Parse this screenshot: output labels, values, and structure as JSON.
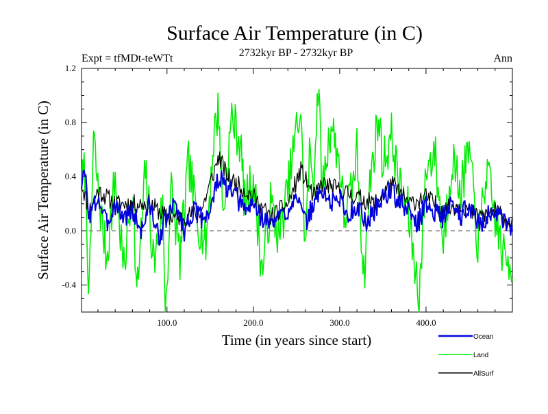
{
  "chart_data": {
    "type": "line",
    "title": "Surface Air Temperature (in C)",
    "subtitle_left": "Expt = tfMDt-teWTt",
    "subtitle_center": "2732kyr BP - 2732kyr BP",
    "subtitle_right": "Ann",
    "xlabel": "Time (in years since start)",
    "ylabel": "Surface Air Temperature (in C)",
    "xlim": [
      1,
      500
    ],
    "ylim": [
      -0.6,
      1.2
    ],
    "xticks": [
      100,
      200,
      300,
      400
    ],
    "xtick_labels": [
      "100.0",
      "200.0",
      "300.0",
      "400.0"
    ],
    "yticks": [
      -0.4,
      0.0,
      0.4,
      0.8,
      1.2
    ],
    "ytick_labels": [
      "-0.4",
      "0.0",
      "0.4",
      "0.8",
      "1.2"
    ],
    "reference_line": 0.0,
    "series_points": 500,
    "series": [
      {
        "name": "Land",
        "color": "#00ee00",
        "anchors": [
          [
            1,
            0.35
          ],
          [
            5,
            0.45
          ],
          [
            10,
            -0.5
          ],
          [
            15,
            0.7
          ],
          [
            20,
            0.3
          ],
          [
            30,
            -0.2
          ],
          [
            40,
            0.4
          ],
          [
            50,
            -0.3
          ],
          [
            60,
            0.35
          ],
          [
            65,
            -0.5
          ],
          [
            75,
            0.45
          ],
          [
            85,
            -0.25
          ],
          [
            95,
            0.2
          ],
          [
            98,
            -0.6
          ],
          [
            105,
            0.3
          ],
          [
            115,
            -0.2
          ],
          [
            125,
            0.5
          ],
          [
            135,
            0.1
          ],
          [
            145,
            -0.1
          ],
          [
            155,
            0.75
          ],
          [
            160,
            0.9
          ],
          [
            165,
            0.1
          ],
          [
            175,
            0.85
          ],
          [
            185,
            0.65
          ],
          [
            190,
            0.2
          ],
          [
            200,
            0.4
          ],
          [
            210,
            -0.3
          ],
          [
            220,
            0.2
          ],
          [
            230,
            -0.05
          ],
          [
            240,
            0.3
          ],
          [
            250,
            0.75
          ],
          [
            255,
            0.9
          ],
          [
            260,
            -0.15
          ],
          [
            265,
            0.55
          ],
          [
            270,
            0.4
          ],
          [
            275,
            1.08
          ],
          [
            280,
            0.3
          ],
          [
            290,
            0.8
          ],
          [
            300,
            0.5
          ],
          [
            305,
            0.1
          ],
          [
            315,
            0.3
          ],
          [
            320,
            0.6
          ],
          [
            328,
            -0.35
          ],
          [
            335,
            0.35
          ],
          [
            345,
            0.85
          ],
          [
            350,
            0.5
          ],
          [
            360,
            0.7
          ],
          [
            370,
            0.3
          ],
          [
            378,
            0.2
          ],
          [
            385,
            -0.15
          ],
          [
            392,
            -0.5
          ],
          [
            400,
            0.45
          ],
          [
            410,
            0.6
          ],
          [
            420,
            -0.1
          ],
          [
            430,
            0.55
          ],
          [
            440,
            0.3
          ],
          [
            450,
            0.6
          ],
          [
            460,
            -0.1
          ],
          [
            470,
            0.45
          ],
          [
            480,
            0.1
          ],
          [
            490,
            -0.2
          ],
          [
            500,
            -0.25
          ]
        ]
      },
      {
        "name": "Ocean",
        "color": "#0000dd",
        "anchors": [
          [
            1,
            0.35
          ],
          [
            5,
            0.42
          ],
          [
            10,
            0.1
          ],
          [
            20,
            0.25
          ],
          [
            30,
            0.05
          ],
          [
            40,
            0.2
          ],
          [
            50,
            0.1
          ],
          [
            60,
            0.15
          ],
          [
            70,
            0.0
          ],
          [
            80,
            0.2
          ],
          [
            90,
            -0.05
          ],
          [
            100,
            0.1
          ],
          [
            110,
            0.2
          ],
          [
            120,
            0.0
          ],
          [
            130,
            0.15
          ],
          [
            140,
            0.1
          ],
          [
            150,
            0.15
          ],
          [
            160,
            0.4
          ],
          [
            170,
            0.3
          ],
          [
            180,
            0.25
          ],
          [
            190,
            0.15
          ],
          [
            200,
            0.2
          ],
          [
            210,
            0.1
          ],
          [
            220,
            0.05
          ],
          [
            230,
            0.1
          ],
          [
            240,
            0.15
          ],
          [
            250,
            0.3
          ],
          [
            255,
            0.15
          ],
          [
            260,
            0.05
          ],
          [
            270,
            0.2
          ],
          [
            280,
            0.3
          ],
          [
            290,
            0.2
          ],
          [
            300,
            0.25
          ],
          [
            310,
            0.1
          ],
          [
            320,
            0.2
          ],
          [
            330,
            0.05
          ],
          [
            340,
            0.15
          ],
          [
            350,
            0.25
          ],
          [
            360,
            0.3
          ],
          [
            370,
            0.2
          ],
          [
            380,
            0.15
          ],
          [
            390,
            0.05
          ],
          [
            400,
            0.2
          ],
          [
            410,
            0.15
          ],
          [
            420,
            0.1
          ],
          [
            430,
            0.2
          ],
          [
            440,
            0.1
          ],
          [
            450,
            0.2
          ],
          [
            460,
            0.05
          ],
          [
            470,
            0.1
          ],
          [
            480,
            0.15
          ],
          [
            490,
            0.05
          ],
          [
            500,
            0.0
          ]
        ]
      },
      {
        "name": "AllSurf",
        "color": "#000000",
        "anchors": [
          [
            1,
            0.35
          ],
          [
            10,
            0.15
          ],
          [
            20,
            0.3
          ],
          [
            40,
            0.2
          ],
          [
            60,
            0.2
          ],
          [
            80,
            0.2
          ],
          [
            100,
            0.1
          ],
          [
            120,
            0.1
          ],
          [
            140,
            0.15
          ],
          [
            160,
            0.55
          ],
          [
            170,
            0.4
          ],
          [
            180,
            0.35
          ],
          [
            200,
            0.25
          ],
          [
            220,
            0.1
          ],
          [
            240,
            0.2
          ],
          [
            255,
            0.45
          ],
          [
            270,
            0.25
          ],
          [
            280,
            0.35
          ],
          [
            300,
            0.3
          ],
          [
            320,
            0.25
          ],
          [
            340,
            0.2
          ],
          [
            360,
            0.35
          ],
          [
            380,
            0.2
          ],
          [
            400,
            0.25
          ],
          [
            420,
            0.15
          ],
          [
            440,
            0.2
          ],
          [
            460,
            0.1
          ],
          [
            480,
            0.15
          ],
          [
            500,
            0.05
          ]
        ]
      }
    ]
  }
}
